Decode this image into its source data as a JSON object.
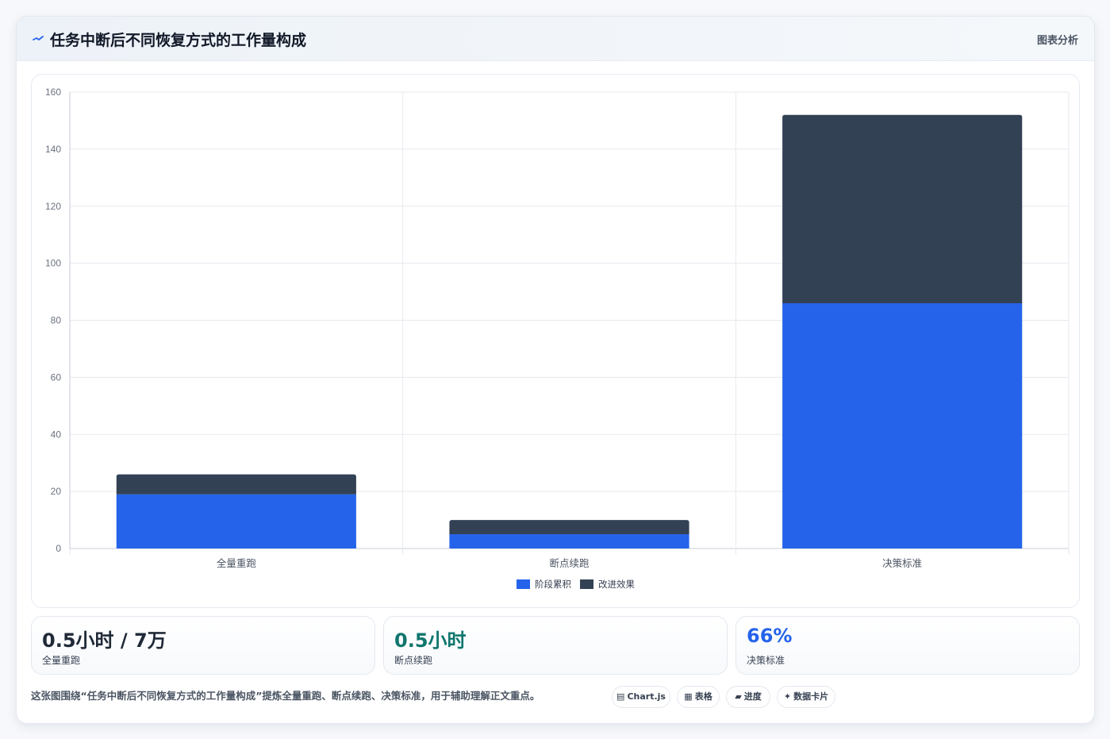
{
  "header": {
    "title": "任务中断后不同恢复方式的工作量构成",
    "tag": "图表分析"
  },
  "chart_data": {
    "type": "bar",
    "stacked": true,
    "categories": [
      "全量重跑",
      "断点续跑",
      "决策标准"
    ],
    "series": [
      {
        "name": "阶段累积",
        "values": [
          19,
          5,
          86
        ],
        "color": "#2563eb"
      },
      {
        "name": "改进效果",
        "values": [
          7,
          5,
          66
        ],
        "color": "#334155"
      }
    ],
    "ylim": [
      0,
      160
    ],
    "yticks": [
      0,
      20,
      40,
      60,
      80,
      100,
      120,
      140,
      160
    ],
    "grid": true,
    "legend": "bottom"
  },
  "stats": [
    {
      "value": "0.5小时 / 7万",
      "label": "全量重跑",
      "color": "#1f2937"
    },
    {
      "value": "0.5小时",
      "label": "断点续跑",
      "color": "#0f766e"
    },
    {
      "value": "66%",
      "label": "决策标准",
      "color": "#2563eb"
    }
  ],
  "footer": {
    "note": "这张图围绕“任务中断后不同恢复方式的工作量构成”提炼全量重跑、断点续跑、决策标准，用于辅助理解正文重点。",
    "chips": [
      {
        "icon": "▤",
        "label": "Chart.js",
        "icon_name": "chart-icon"
      },
      {
        "icon": "▦",
        "label": "表格",
        "icon_name": "table-icon"
      },
      {
        "icon": "▰",
        "label": "进度",
        "icon_name": "progress-icon"
      },
      {
        "icon": "✦",
        "label": "数据卡片",
        "icon_name": "sparkle-icon"
      }
    ]
  }
}
